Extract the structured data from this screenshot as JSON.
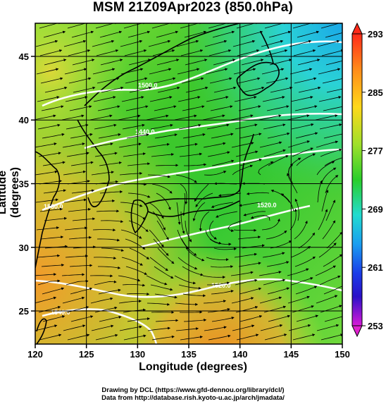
{
  "title": "MSM 21Z09Apr2023 (850.0hPa)",
  "xlabel": "Longitude (degrees)",
  "ylabel": "Latitude  (degrees)",
  "x_ticks": [
    "120",
    "125",
    "130",
    "135",
    "140",
    "145",
    "150"
  ],
  "y_ticks": [
    "25",
    "30",
    "35",
    "40",
    "45"
  ],
  "colorbar_ticks": [
    "293",
    "285",
    "277",
    "269",
    "261",
    "253"
  ],
  "credits": {
    "line1": "Drawing by DCL (https://www.gfd-dennou.org/library/dcl/)",
    "line2": "Data from http://database.rish.kyoto-u.ac.jp/arch/jmadata/"
  },
  "contour_labels": [
    "1500.0",
    "1440.0",
    "1560.0",
    "1520.0",
    "1520.0",
    "1540.0"
  ],
  "map": {
    "lon_range": [
      120,
      150
    ],
    "lat_range": [
      22.4,
      47.6
    ],
    "field": "temperature (K)",
    "color_range": [
      253,
      293
    ],
    "colors": {
      "warm": "#f08a28",
      "mid": "#3ccc28",
      "cool": "#26d3e6",
      "land_outline": "#000000",
      "contour": "#ffffff"
    }
  }
}
